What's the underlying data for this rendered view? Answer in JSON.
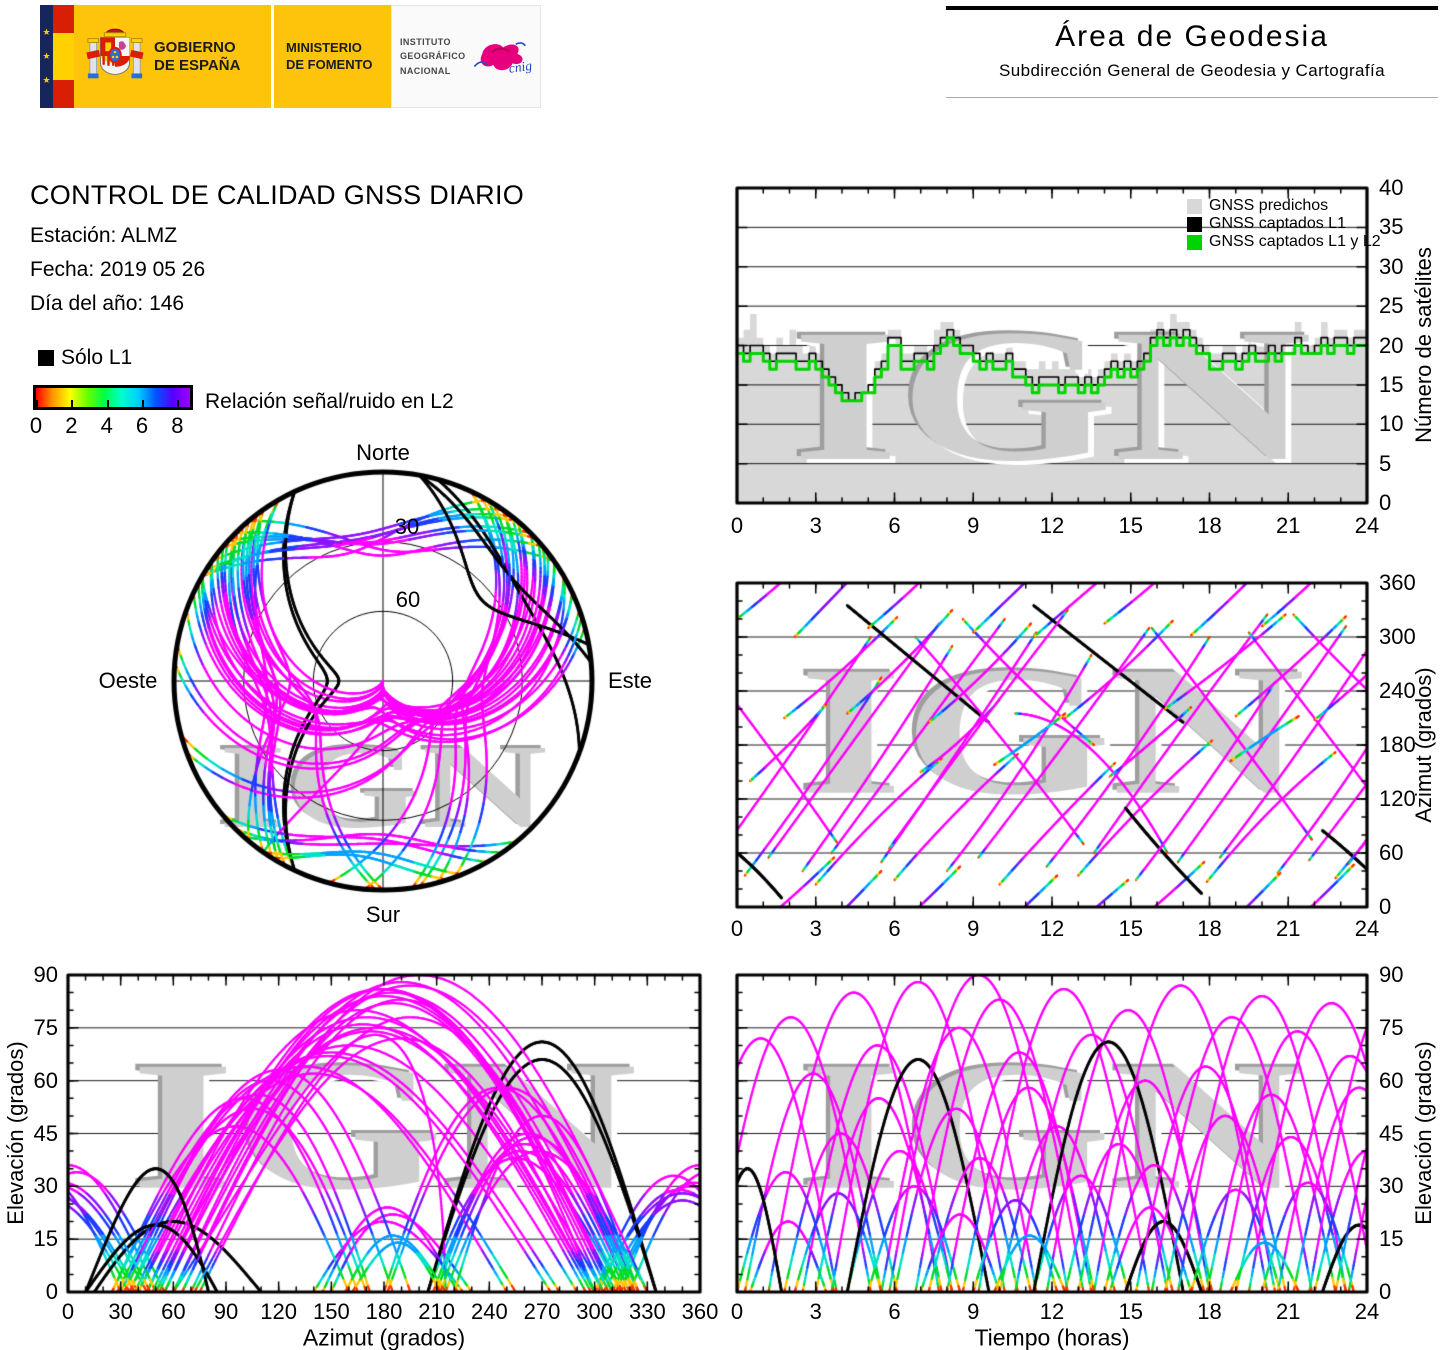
{
  "banner": {
    "gobierno_line1": "GOBIERNO",
    "gobierno_line2": "DE ESPAÑA",
    "ministerio_line1": "MINISTERIO",
    "ministerio_line2": "DE FOMENTO",
    "instituto_lines": [
      "INSTITUTO",
      "GEOGRÁFICO",
      "NACIONAL"
    ],
    "cnig_text": "cnig",
    "banner_yellow": "#fdc40b",
    "flag_navy": "#16255c",
    "flag_red": "#d81e05",
    "flag_yellow": "#ffd100",
    "cnig_magenta": "#e6007e",
    "cnig_blue": "#2746c4"
  },
  "area_header": {
    "title": "Área de Geodesia",
    "subtitle": "Subdirección General de Geodesia y Cartografía"
  },
  "report": {
    "title": "CONTROL DE CALIDAD GNSS DIARIO",
    "station": "Estación: ALMZ",
    "date": "Fecha: 2019 05 26",
    "doy": "Día del año: 146"
  },
  "solo_l1_label": "Sólo L1",
  "colorbar": {
    "label": "Relación señal/ruido en L2",
    "ticks": [
      "0",
      "2",
      "4",
      "6",
      "8"
    ],
    "domain": [
      0,
      8.6
    ],
    "gradient": [
      "#ff0000",
      "#ff9900",
      "#ffff00",
      "#66ff00",
      "#00ff44",
      "#00ffcc",
      "#00ccff",
      "#0055ff",
      "#5500ff",
      "#a000ff"
    ]
  },
  "watermark": "IGN",
  "passes_format": [
    "t0_hours",
    "duration_hours",
    "elev_max_deg",
    "az_rise_deg",
    "az_culmination_deg",
    "az_set_deg",
    "style_0color_1blackL1_2magenta"
  ],
  "passes": [
    [
      -1.0,
      6.1,
      78,
      45,
      170,
      300,
      2
    ],
    [
      0.3,
      5.2,
      62,
      35,
      140,
      255,
      0
    ],
    [
      0.0,
      3.7,
      34,
      320,
      365,
      415,
      0
    ],
    [
      0.5,
      2.9,
      20,
      140,
      180,
      225,
      2
    ],
    [
      1.2,
      6.5,
      85,
      55,
      185,
      315,
      2
    ],
    [
      1.8,
      4.3,
      45,
      210,
      262,
      322,
      0
    ],
    [
      2.5,
      5.7,
      70,
      40,
      160,
      290,
      2
    ],
    [
      2.2,
      3.3,
      28,
      300,
      350,
      400,
      0
    ],
    [
      3.0,
      4.8,
      55,
      25,
      100,
      165,
      0
    ],
    [
      3.6,
      6.6,
      88,
      60,
      190,
      320,
      2
    ],
    [
      4.2,
      4.0,
      40,
      215,
      268,
      330,
      0
    ],
    [
      4.2,
      5.4,
      66,
      335,
      270,
      205,
      1
    ],
    [
      5.0,
      3.5,
      30,
      310,
      355,
      405,
      0
    ],
    [
      5.5,
      5.9,
      75,
      50,
      175,
      305,
      2
    ],
    [
      6.0,
      4.7,
      52,
      30,
      105,
      170,
      0
    ],
    [
      6.8,
      6.4,
      83,
      300,
      190,
      70,
      2
    ],
    [
      7.3,
      3.9,
      38,
      205,
      255,
      315,
      0
    ],
    [
      7.0,
      3.0,
      22,
      150,
      185,
      230,
      2
    ],
    [
      8.0,
      5.5,
      68,
      40,
      150,
      280,
      2
    ],
    [
      8.6,
      5.0,
      58,
      320,
      245,
      180,
      0
    ],
    [
      9.2,
      6.5,
      86,
      55,
      180,
      310,
      2
    ],
    [
      9.0,
      3.2,
      26,
      305,
      350,
      395,
      0
    ],
    [
      10.0,
      4.4,
      47,
      25,
      95,
      160,
      0
    ],
    [
      10.6,
      5.8,
      73,
      215,
      175,
      60,
      2
    ],
    [
      11.3,
      3.6,
      33,
      300,
      345,
      390,
      0
    ],
    [
      11.8,
      6.2,
      80,
      45,
      165,
      300,
      2
    ],
    [
      11.3,
      5.7,
      71,
      335,
      270,
      205,
      1
    ],
    [
      12.5,
      4.1,
      42,
      210,
      260,
      318,
      0
    ],
    [
      13.0,
      5.1,
      60,
      35,
      115,
      185,
      0
    ],
    [
      13.6,
      6.6,
      87,
      60,
      195,
      325,
      2
    ],
    [
      14.2,
      3.1,
      24,
      145,
      182,
      222,
      2
    ],
    [
      14.0,
      3.8,
      36,
      315,
      360,
      410,
      0
    ],
    [
      14.8,
      2.9,
      20,
      110,
      60,
      15,
      1
    ],
    [
      15.2,
      5.3,
      64,
      30,
      135,
      250,
      2
    ],
    [
      15.8,
      6.1,
      78,
      310,
      195,
      75,
      2
    ],
    [
      16.3,
      4.6,
      50,
      220,
      270,
      325,
      0
    ],
    [
      16.8,
      6.4,
      84,
      50,
      180,
      312,
      2
    ],
    [
      17.3,
      3.4,
      29,
      302,
      348,
      398,
      0
    ],
    [
      17.9,
      4.9,
      56,
      28,
      108,
      172,
      0
    ],
    [
      18.4,
      5.9,
      74,
      55,
      172,
      298,
      2
    ],
    [
      19.0,
      4.2,
      44,
      212,
      265,
      323,
      0
    ],
    [
      19.5,
      6.3,
      82,
      305,
      185,
      65,
      2
    ],
    [
      20.0,
      3.5,
      31,
      312,
      357,
      407,
      0
    ],
    [
      20.6,
      5.5,
      67,
      38,
      148,
      275,
      2
    ],
    [
      21.2,
      5.0,
      58,
      325,
      250,
      182,
      0
    ],
    [
      21.8,
      6.5,
      86,
      52,
      178,
      308,
      2
    ],
    [
      22.3,
      2.8,
      19,
      85,
      50,
      10,
      1
    ],
    [
      22.0,
      4.0,
      40,
      208,
      258,
      316,
      0
    ],
    [
      22.8,
      5.3,
      63,
      32,
      120,
      195,
      0
    ],
    [
      23.3,
      6.0,
      76,
      48,
      168,
      295,
      2
    ],
    [
      -0.9,
      2.6,
      35,
      80,
      50,
      10,
      1
    ],
    [
      -2.0,
      5.8,
      72,
      300,
      190,
      72,
      2
    ],
    [
      9.8,
      2.7,
      16,
      158,
      185,
      215,
      0
    ],
    [
      18.8,
      2.6,
      14,
      162,
      188,
      212,
      0
    ],
    [
      5.8,
      6.8,
      90,
      65,
      200,
      330,
      2
    ]
  ],
  "snr_colormap": {
    "stops_elevation_deg": [
      1.6,
      3.6,
      7,
      11,
      16,
      22,
      28
    ],
    "colors": [
      "#ff3200",
      "#ffc800",
      "#00dc28",
      "#00e0c8",
      "#00a0ff",
      "#1e3cff",
      "#8c14ff",
      "#ff00ff"
    ],
    "black_solo_l1": "#000000",
    "magenta_boost_factor": 2.4
  },
  "chart_data": [
    {
      "id": "satellite-count",
      "type": "step-area-line",
      "x_label": "",
      "y_label": "Número de satélites",
      "x_range": [
        0,
        24
      ],
      "y_range": [
        0,
        40
      ],
      "x_ticks": [
        "0",
        "3",
        "6",
        "9",
        "12",
        "15",
        "18",
        "21",
        "24"
      ],
      "y_ticks": [
        "0",
        "5",
        "10",
        "15",
        "20",
        "25",
        "30",
        "35",
        "40"
      ],
      "step_hours": 0.25,
      "legend": [
        {
          "label": "GNSS predichos",
          "color": "#d8d8d8"
        },
        {
          "label": "GNSS captados L1",
          "color": "#000000"
        },
        {
          "label": "GNSS captados L1 y L2",
          "color": "#00d400"
        }
      ],
      "series": [
        {
          "name": "GNSS predichos",
          "values": [
            21,
            22,
            24,
            21,
            20,
            19,
            21,
            20,
            22,
            20,
            19,
            20,
            19,
            18,
            17,
            16,
            15,
            15,
            15,
            15,
            16,
            18,
            19,
            22,
            22,
            19,
            19,
            20,
            20,
            19,
            22,
            23,
            23,
            22,
            21,
            21,
            20,
            19,
            20,
            19,
            19,
            20,
            18,
            18,
            17,
            17,
            18,
            17,
            18,
            17,
            17,
            17,
            16,
            17,
            16,
            17,
            18,
            19,
            18,
            19,
            18,
            19,
            20,
            22,
            23,
            22,
            24,
            23,
            23,
            22,
            21,
            20,
            19,
            19,
            20,
            20,
            19,
            20,
            21,
            20,
            20,
            21,
            20,
            21,
            21,
            23,
            21,
            20,
            21,
            23,
            21,
            22,
            22,
            21,
            22,
            22
          ]
        },
        {
          "name": "GNSS captados L1",
          "values": [
            20,
            19,
            20,
            20,
            19,
            18,
            19,
            19,
            19,
            18,
            18,
            19,
            18,
            17,
            16,
            15,
            14,
            13,
            14,
            14,
            15,
            17,
            18,
            21,
            21,
            18,
            18,
            19,
            19,
            18,
            20,
            21,
            22,
            21,
            20,
            20,
            19,
            18,
            19,
            18,
            18,
            19,
            17,
            17,
            16,
            15,
            16,
            16,
            16,
            15,
            16,
            16,
            15,
            16,
            15,
            16,
            17,
            18,
            17,
            18,
            17,
            18,
            19,
            21,
            22,
            21,
            22,
            21,
            22,
            21,
            20,
            19,
            18,
            18,
            19,
            19,
            18,
            19,
            20,
            19,
            19,
            20,
            19,
            20,
            20,
            21,
            20,
            19,
            20,
            21,
            20,
            21,
            21,
            20,
            21,
            21
          ]
        },
        {
          "name": "GNSS captados L1 y L2",
          "values": [
            19,
            18,
            19,
            19,
            18,
            17,
            18,
            18,
            18,
            17,
            17,
            18,
            17,
            16,
            15,
            14,
            13,
            13,
            13,
            14,
            14,
            16,
            17,
            20,
            20,
            17,
            17,
            18,
            18,
            17,
            19,
            20,
            21,
            20,
            19,
            19,
            18,
            17,
            18,
            17,
            17,
            18,
            16,
            16,
            15,
            14,
            15,
            15,
            15,
            14,
            15,
            15,
            14,
            15,
            14,
            15,
            16,
            17,
            16,
            17,
            16,
            17,
            18,
            20,
            21,
            20,
            21,
            20,
            21,
            20,
            19,
            19,
            17,
            17,
            18,
            18,
            17,
            18,
            19,
            18,
            18,
            19,
            18,
            19,
            19,
            20,
            19,
            19,
            19,
            20,
            19,
            20,
            20,
            19,
            20,
            20
          ]
        }
      ]
    },
    {
      "id": "skyplot",
      "type": "polar-skyplot",
      "compass": {
        "north": "Norte",
        "south": "Sur",
        "east": "Este",
        "west": "Oeste"
      },
      "ring_labels": [
        "30",
        "60"
      ],
      "rings_deg": [
        30,
        60
      ],
      "source": "passes"
    },
    {
      "id": "azimuth-time",
      "type": "line",
      "x_label": "",
      "y_label": "Azimut (grados)",
      "x_range": [
        0,
        24
      ],
      "y_range": [
        0,
        360
      ],
      "x_ticks": [
        "0",
        "3",
        "6",
        "9",
        "12",
        "15",
        "18",
        "21",
        "24"
      ],
      "y_ticks": [
        "0",
        "60",
        "120",
        "180",
        "240",
        "300",
        "360"
      ],
      "source": "passes"
    },
    {
      "id": "elevation-azimuth",
      "type": "line",
      "x_label": "Azimut (grados)",
      "y_label": "Elevación (grados)",
      "x_range": [
        0,
        360
      ],
      "y_range": [
        0,
        90
      ],
      "x_ticks": [
        "0",
        "30",
        "60",
        "90",
        "120",
        "150",
        "180",
        "210",
        "240",
        "270",
        "300",
        "330",
        "360"
      ],
      "y_ticks": [
        "0",
        "15",
        "30",
        "45",
        "60",
        "75",
        "90"
      ],
      "source": "passes"
    },
    {
      "id": "elevation-time",
      "type": "line",
      "x_label": "Tiempo (horas)",
      "y_label": "Elevación (grados)",
      "x_range": [
        0,
        24
      ],
      "y_range": [
        0,
        90
      ],
      "x_ticks": [
        "0",
        "3",
        "6",
        "9",
        "12",
        "15",
        "18",
        "21",
        "24"
      ],
      "y_ticks": [
        "0",
        "15",
        "30",
        "45",
        "60",
        "75",
        "90"
      ],
      "source": "passes"
    }
  ]
}
